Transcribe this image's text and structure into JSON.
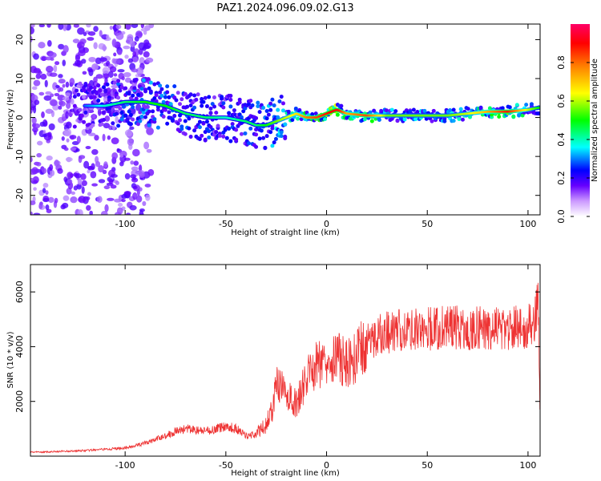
{
  "title": "PAZ1.2024.096.09.02.G13",
  "chart_data": [
    {
      "type": "heatmap",
      "xlabel": "Height of straight line (km)",
      "ylabel": "Frequency (Hz)",
      "xlim": [
        -147,
        106
      ],
      "ylim": [
        -25,
        24
      ],
      "xticks": [
        -100,
        -50,
        0,
        50,
        100
      ],
      "xtick_labels": [
        "-100",
        "-50",
        "0",
        "50",
        "100"
      ],
      "yticks": [
        -20,
        -10,
        0,
        10,
        20
      ],
      "ytick_labels": [
        "-20",
        "-10",
        "0",
        "10",
        "20"
      ],
      "colorbar": {
        "label": "Normalized spectral amplitude",
        "range": [
          0,
          1
        ],
        "ticks": [
          0.0,
          0.2,
          0.4,
          0.6,
          0.8
        ],
        "tick_labels": [
          "0.0",
          "0.2",
          "0.4",
          "0.6",
          "0.8"
        ],
        "colormap": [
          "#ffffff",
          "#6600ff",
          "#0000ff",
          "#00ffff",
          "#00ff00",
          "#ffff00",
          "#ff8000",
          "#ff0000",
          "#ff0066"
        ]
      },
      "ridge": {
        "x": [
          -120,
          -110,
          -100,
          -90,
          -80,
          -70,
          -60,
          -50,
          -40,
          -35,
          -30,
          -25,
          -20,
          -15,
          -10,
          -5,
          0,
          5,
          10,
          20,
          30,
          40,
          50,
          60,
          70,
          80,
          90,
          100,
          105
        ],
        "y": [
          3,
          3,
          4,
          4,
          3,
          1,
          0,
          0,
          -1,
          -2,
          -2,
          -1,
          0,
          1,
          0,
          0,
          1,
          2,
          1,
          0.5,
          0.5,
          0.5,
          0.5,
          0.5,
          1,
          1.5,
          1.5,
          2,
          2.5
        ],
        "amplitude": [
          0.3,
          0.4,
          0.45,
          0.5,
          0.5,
          0.45,
          0.45,
          0.4,
          0.45,
          0.45,
          0.5,
          0.55,
          0.6,
          0.65,
          0.75,
          0.8,
          0.85,
          0.9,
          0.7,
          0.8,
          0.55,
          0.55,
          0.55,
          0.55,
          0.6,
          0.7,
          0.85,
          0.6,
          0.5
        ]
      }
    },
    {
      "type": "line",
      "xlabel": "Height of straight line (km)",
      "ylabel": "SNR (10 * v/v)",
      "xlim": [
        -147,
        106
      ],
      "ylim": [
        0,
        7000
      ],
      "xticks": [
        -100,
        -50,
        0,
        50,
        100
      ],
      "xtick_labels": [
        "-100",
        "-50",
        "0",
        "50",
        "100"
      ],
      "yticks": [
        2000,
        4000,
        6000
      ],
      "ytick_labels": [
        "2000",
        "4000",
        "6000"
      ],
      "color": "#ee3333",
      "series": [
        {
          "x": [
            -147,
            -140,
            -130,
            -120,
            -110,
            -100,
            -95,
            -90,
            -85,
            -80,
            -75,
            -70,
            -65,
            -60,
            -55,
            -50,
            -45,
            -40,
            -35,
            -30,
            -27,
            -25,
            -23,
            -20,
            -18,
            -15,
            -12,
            -10,
            -8,
            -5,
            -2,
            0,
            3,
            5,
            8,
            10,
            12,
            15,
            20,
            25,
            30,
            35,
            40,
            45,
            50,
            55,
            60,
            65,
            70,
            75,
            80,
            85,
            90,
            95,
            100,
            103,
            104,
            105,
            106
          ],
          "y": [
            150,
            150,
            180,
            200,
            250,
            300,
            380,
            480,
            600,
            750,
            900,
            1000,
            950,
            900,
            1000,
            1100,
            1000,
            750,
            800,
            1150,
            1700,
            2600,
            2500,
            2300,
            2100,
            1900,
            2500,
            2700,
            3200,
            3300,
            3500,
            3650,
            3700,
            3600,
            3500,
            3350,
            3450,
            3700,
            4100,
            4400,
            4500,
            4600,
            4650,
            4700,
            4650,
            4650,
            4700,
            4700,
            4650,
            4700,
            4700,
            4750,
            4700,
            4700,
            4750,
            4800,
            5200,
            6200,
            1500
          ]
        }
      ]
    }
  ]
}
